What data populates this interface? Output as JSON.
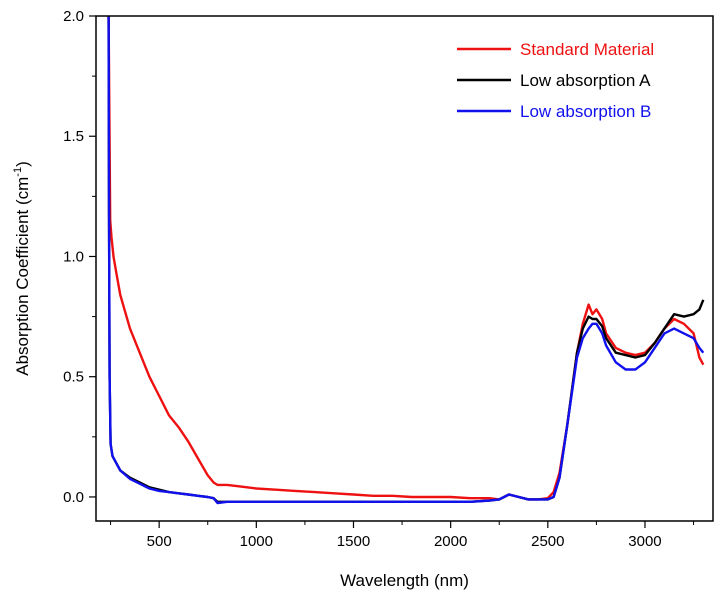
{
  "chart_data": {
    "type": "line",
    "title": "",
    "xlabel": "Wavelength (nm)",
    "ylabel_main": "Absorption Coefficient (cm",
    "ylabel_sup": "-1",
    "ylabel_close": ")",
    "xlim": [
      175,
      3350
    ],
    "ylim": [
      -0.1,
      2.0
    ],
    "x_ticks": [
      500,
      1000,
      1500,
      2000,
      2500,
      3000
    ],
    "x_tick_labels": [
      "500",
      "1000",
      "1500",
      "2000",
      "2500",
      "3000"
    ],
    "y_ticks": [
      0.0,
      0.5,
      1.0,
      1.5,
      2.0
    ],
    "y_tick_labels": [
      "0.0",
      "0.5",
      "1.0",
      "1.5",
      "2.0"
    ],
    "grid": false,
    "legend_position": "top-right",
    "series": [
      {
        "name": "Standard Material",
        "color": "#ee1111",
        "x": [
          240,
          248,
          255,
          265,
          280,
          300,
          350,
          400,
          450,
          500,
          550,
          600,
          650,
          700,
          750,
          780,
          800,
          850,
          900,
          1000,
          1100,
          1200,
          1300,
          1400,
          1500,
          1600,
          1700,
          1800,
          1900,
          2000,
          2100,
          2200,
          2250,
          2300,
          2350,
          2400,
          2450,
          2500,
          2530,
          2560,
          2600,
          2650,
          2680,
          2710,
          2730,
          2750,
          2780,
          2800,
          2850,
          2900,
          2950,
          3000,
          3050,
          3100,
          3150,
          3200,
          3250,
          3280,
          3300
        ],
        "y": [
          2.0,
          1.15,
          1.08,
          1.0,
          0.93,
          0.84,
          0.7,
          0.6,
          0.5,
          0.42,
          0.34,
          0.29,
          0.23,
          0.16,
          0.09,
          0.06,
          0.05,
          0.05,
          0.045,
          0.035,
          0.03,
          0.025,
          0.02,
          0.015,
          0.01,
          0.005,
          0.005,
          0.0,
          0.0,
          0.0,
          -0.005,
          -0.005,
          -0.01,
          0.01,
          0.0,
          -0.01,
          -0.01,
          -0.005,
          0.02,
          0.1,
          0.3,
          0.6,
          0.72,
          0.8,
          0.76,
          0.78,
          0.74,
          0.68,
          0.62,
          0.6,
          0.59,
          0.6,
          0.64,
          0.7,
          0.74,
          0.72,
          0.68,
          0.58,
          0.55
        ]
      },
      {
        "name": "Low absorption A",
        "color": "#000000",
        "x": [
          240,
          242,
          245,
          250,
          260,
          280,
          300,
          350,
          400,
          450,
          500,
          550,
          600,
          650,
          700,
          750,
          780,
          800,
          850,
          900,
          1000,
          1200,
          1400,
          1600,
          1800,
          2000,
          2100,
          2200,
          2250,
          2300,
          2350,
          2400,
          2450,
          2500,
          2530,
          2560,
          2600,
          2650,
          2680,
          2710,
          2730,
          2750,
          2780,
          2800,
          2850,
          2900,
          2950,
          3000,
          3050,
          3100,
          3150,
          3200,
          3250,
          3280,
          3300
        ],
        "y": [
          2.0,
          1.2,
          0.5,
          0.22,
          0.17,
          0.14,
          0.11,
          0.08,
          0.06,
          0.04,
          0.03,
          0.02,
          0.015,
          0.01,
          0.005,
          0.0,
          -0.005,
          -0.02,
          -0.02,
          -0.02,
          -0.02,
          -0.02,
          -0.02,
          -0.02,
          -0.02,
          -0.02,
          -0.02,
          -0.015,
          -0.01,
          0.01,
          0.0,
          -0.01,
          -0.01,
          -0.01,
          0.0,
          0.08,
          0.3,
          0.6,
          0.7,
          0.75,
          0.74,
          0.74,
          0.71,
          0.66,
          0.6,
          0.59,
          0.58,
          0.59,
          0.64,
          0.7,
          0.76,
          0.75,
          0.76,
          0.78,
          0.82
        ]
      },
      {
        "name": "Low absorption B",
        "color": "#1111ee",
        "x": [
          240,
          242,
          245,
          250,
          260,
          280,
          300,
          350,
          400,
          450,
          500,
          550,
          600,
          650,
          700,
          750,
          780,
          800,
          850,
          900,
          1000,
          1200,
          1400,
          1600,
          1800,
          2000,
          2100,
          2200,
          2250,
          2300,
          2350,
          2400,
          2450,
          2500,
          2530,
          2560,
          2600,
          2650,
          2680,
          2710,
          2730,
          2750,
          2780,
          2800,
          2850,
          2900,
          2950,
          3000,
          3050,
          3100,
          3150,
          3200,
          3250,
          3280,
          3300
        ],
        "y": [
          2.0,
          1.2,
          0.5,
          0.22,
          0.17,
          0.14,
          0.11,
          0.075,
          0.055,
          0.035,
          0.025,
          0.02,
          0.015,
          0.01,
          0.005,
          0.0,
          -0.005,
          -0.025,
          -0.02,
          -0.02,
          -0.02,
          -0.02,
          -0.02,
          -0.02,
          -0.02,
          -0.02,
          -0.02,
          -0.015,
          -0.01,
          0.01,
          0.0,
          -0.01,
          -0.01,
          -0.01,
          0.0,
          0.08,
          0.3,
          0.58,
          0.66,
          0.7,
          0.72,
          0.72,
          0.68,
          0.63,
          0.56,
          0.53,
          0.53,
          0.56,
          0.62,
          0.68,
          0.7,
          0.68,
          0.66,
          0.62,
          0.6
        ]
      }
    ]
  }
}
